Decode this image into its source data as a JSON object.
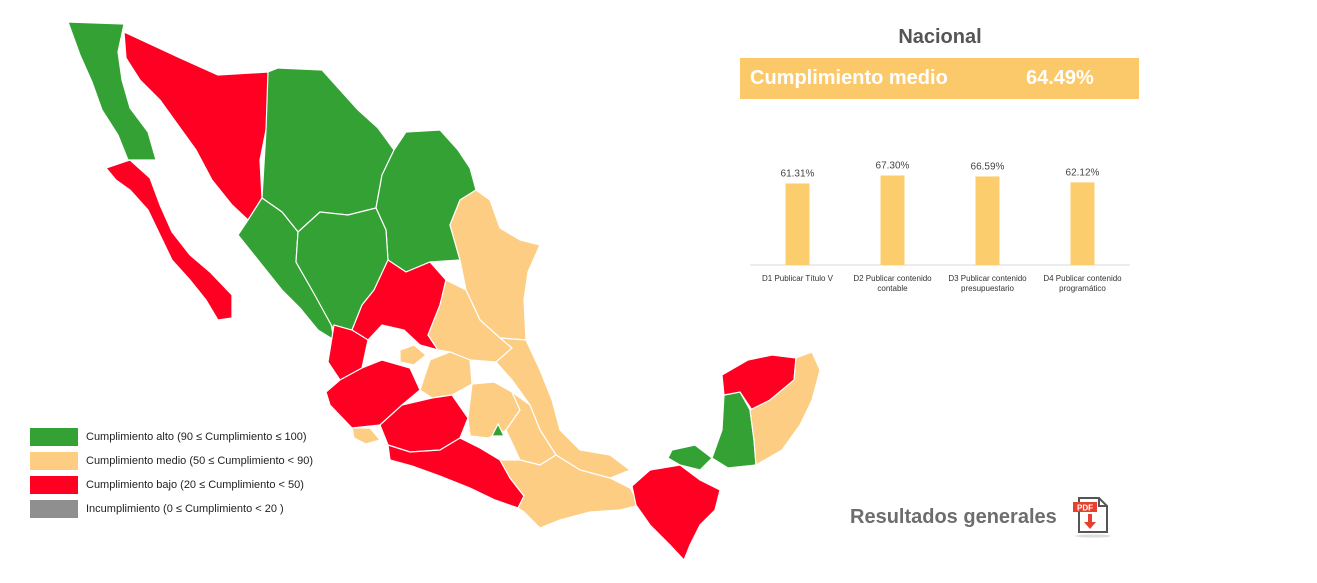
{
  "national": {
    "title": "Nacional",
    "summary_label": "Cumplimiento medio",
    "summary_value": "64.49%"
  },
  "legend": [
    {
      "label": "Cumplimiento alto (90 ≤ Cumplimiento ≤ 100)",
      "color": "#33a133"
    },
    {
      "label": "Cumplimiento medio (50 ≤ Cumplimiento  < 90)",
      "color": "#fccd82"
    },
    {
      "label": "Cumplimiento bajo (20 ≤ Cumplimiento < 50)",
      "color": "#ff0022"
    },
    {
      "label": "Incumplimiento (0 ≤ Cumplimiento < 20 )",
      "color": "#8f8f8f"
    }
  ],
  "chart_data": {
    "type": "bar",
    "categories": [
      "D1 Publicar Título V",
      "D2 Publicar contenido contable",
      "D3 Publicar contenido presupuestario",
      "D4 Publicar contenido programático"
    ],
    "category_lines": [
      [
        "D1 Publicar Título V"
      ],
      [
        "D2 Publicar contenido",
        "contable"
      ],
      [
        "D3 Publicar contenido",
        "presupuestario"
      ],
      [
        "D4 Publicar contenido",
        "programático"
      ]
    ],
    "values": [
      61.31,
      67.3,
      66.59,
      62.12
    ],
    "value_labels": [
      "61.31%",
      "67.30%",
      "66.59%",
      "62.12%"
    ],
    "ylim": [
      0,
      100
    ],
    "bar_color": "#fccd6d",
    "title": "",
    "xlabel": "",
    "ylabel": ""
  },
  "results": {
    "label": "Resultados generales",
    "pdf_badge": "PDF",
    "icon": "pdf-download-icon"
  },
  "colors": {
    "alto": "#33a133",
    "medio": "#fccd82",
    "bajo": "#ff0022",
    "accent": "#fcc96a"
  }
}
